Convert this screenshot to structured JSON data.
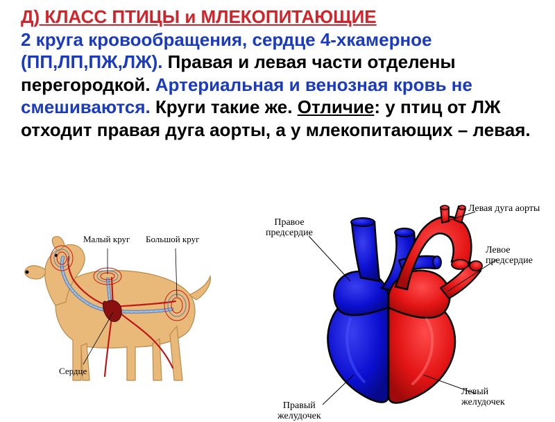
{
  "title": {
    "prefix": "Д) ",
    "main": "КЛАСС ПТИЦЫ и МЛЕКОПИТАЮЩИЕ"
  },
  "para": {
    "p1a": "2 круга кровообращения, сердце 4-хкамерное (ПП,ЛП,ПЖ,ЛЖ).",
    "p1b": " Правая и левая части отделены перегородкой. ",
    "p1c": "Артериальная и венозная кровь не смешиваются.",
    "p1d": " Круги такие же. ",
    "p1e": "Отличие",
    "p1f": ": у птиц от ЛЖ отходит правая дуга  аорты, а у млекопитающих – левая."
  },
  "dog": {
    "label_small": "Малый круг",
    "label_big": "Большой  круг",
    "label_heart": "Сердце",
    "body_fill": "#e9b97a",
    "body_stroke": "#b98a4a",
    "artery_color": "#c01818",
    "vein_fill": "#9fbbe0",
    "vein_stroke": "#5a7aa8",
    "heart_color": "#8a1010"
  },
  "heart": {
    "label_right_atrium": "Правое предсердие",
    "label_left_arch": "Левая дуга аорты",
    "label_left_atrium": "Левое предсердие",
    "label_right_vent": "Правый желудочек",
    "label_left_vent": "Левый желудочек",
    "blue": "#0b0fcf",
    "blue_dark": "#060a8a",
    "red": "#e31414",
    "red_dark": "#a00a0a",
    "outline": "#000000",
    "bg": "#ffffff"
  }
}
